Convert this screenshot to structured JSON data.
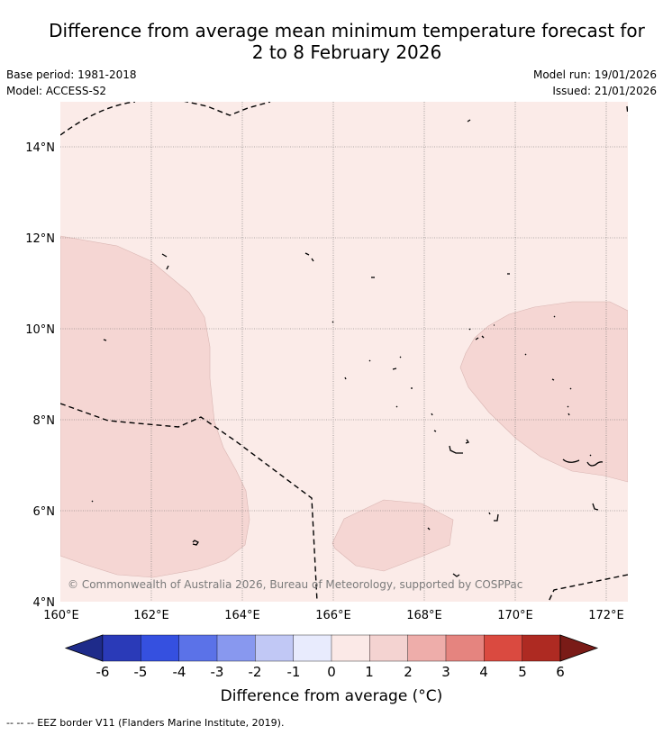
{
  "title_line1": "Difference from average mean minimum temperature forecast for",
  "title_line2": "2 to 8 February 2026",
  "meta": {
    "base_period": "Base period: 1981-2018",
    "model": "Model: ACCESS-S2",
    "model_run": "Model run: 19/01/2026",
    "issued": "Issued: 21/01/2026"
  },
  "map": {
    "lat_labels": [
      "14°N",
      "12°N",
      "10°N",
      "8°N",
      "6°N",
      "4°N"
    ],
    "lon_labels": [
      "160°E",
      "162°E",
      "164°E",
      "166°E",
      "168°E",
      "170°E",
      "172°E"
    ],
    "lat_range": [
      4,
      15
    ],
    "lon_range": [
      160,
      172.5
    ],
    "background_category": "0 to 1",
    "anomaly_regions": [
      {
        "category": "1 to 2",
        "location": "west, 160°E-163.3°E, 4.5°N-12°N"
      },
      {
        "category": "1 to 2",
        "location": "east, 168.8°E-172.5°E, 7.4°N-10.6°N"
      },
      {
        "category": "1 to 2",
        "location": "south-central, 166°E-168.6°E, 4.7°N-6.2°N"
      }
    ],
    "copyright": "© Commonwealth of Australia 2026, Bureau of Meteorology, supported by COSPPac"
  },
  "colorbar": {
    "ticks": [
      "-6",
      "-5",
      "-4",
      "-3",
      "-2",
      "-1",
      "0",
      "1",
      "2",
      "3",
      "4",
      "5",
      "6"
    ],
    "colors": [
      "#1e2b8a",
      "#2a3ab8",
      "#3550e0",
      "#5b72e8",
      "#8898ef",
      "#c1c8f5",
      "#e8ebfd",
      "#fbe9e7",
      "#f4d3d1",
      "#eeadaa",
      "#e5847f",
      "#da4a40",
      "#ae2a22",
      "#7a1b17"
    ],
    "title": "Difference from average (°C)"
  },
  "footer": "--  --  -- EEZ border V11 (Flanders Marine Institute, 2019)."
}
